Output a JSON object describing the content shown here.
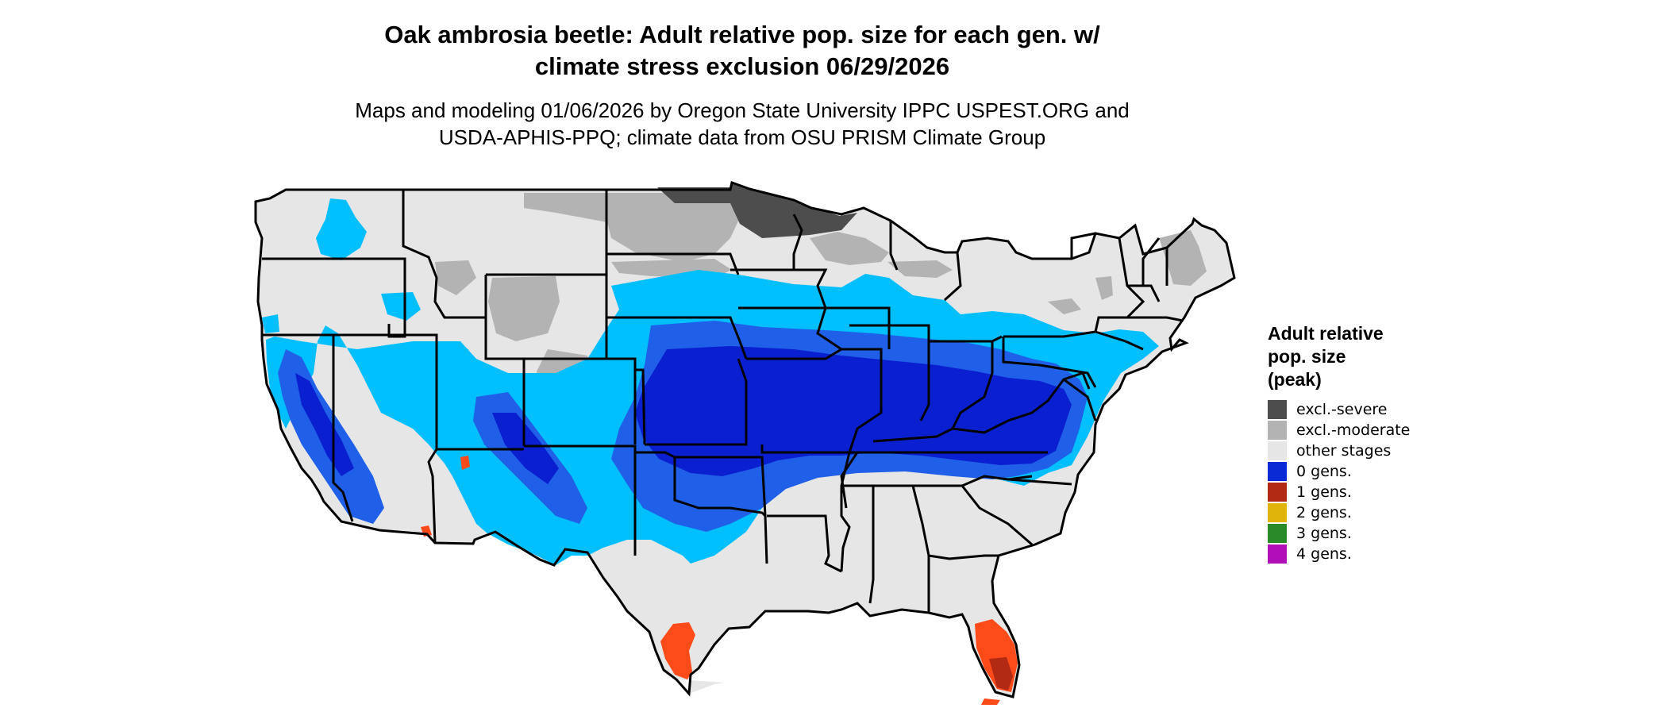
{
  "title_line1": "Oak ambrosia beetle: Adult relative pop. size for each gen. w/",
  "title_line2": "climate stress exclusion 06/29/2026",
  "subtitle_line1": "Maps and modeling 01/06/2026 by Oregon State University IPPC USPEST.ORG and",
  "subtitle_line2": "USDA-APHIS-PPQ; climate data from OSU PRISM Climate Group",
  "legend": {
    "title_line1": "Adult relative",
    "title_line2": "pop. size",
    "title_line3": "(peak)",
    "items": [
      {
        "label": "excl.-severe",
        "color": "#4d4d4d"
      },
      {
        "label": "excl.-moderate",
        "color": "#b3b3b3"
      },
      {
        "label": "other stages",
        "color": "#e6e6e6"
      },
      {
        "label": "0 gens.",
        "color": "#0a2ad6"
      },
      {
        "label": "1 gens.",
        "color": "#b22a14"
      },
      {
        "label": "2 gens.",
        "color": "#e0b40a"
      },
      {
        "label": "3 gens.",
        "color": "#2a8a2a"
      },
      {
        "label": "4 gens.",
        "color": "#b10fb8"
      }
    ]
  },
  "palette": {
    "land": "#e6e6e6",
    "light_blue": "#00bfff",
    "mid_blue": "#2060e8",
    "deep_blue": "#0a1fd0",
    "moderate_gray": "#b3b3b3",
    "severe_gray": "#4d4d4d",
    "orange": "#ff4a1a",
    "dark_red": "#b22a14",
    "border": "#000000"
  }
}
